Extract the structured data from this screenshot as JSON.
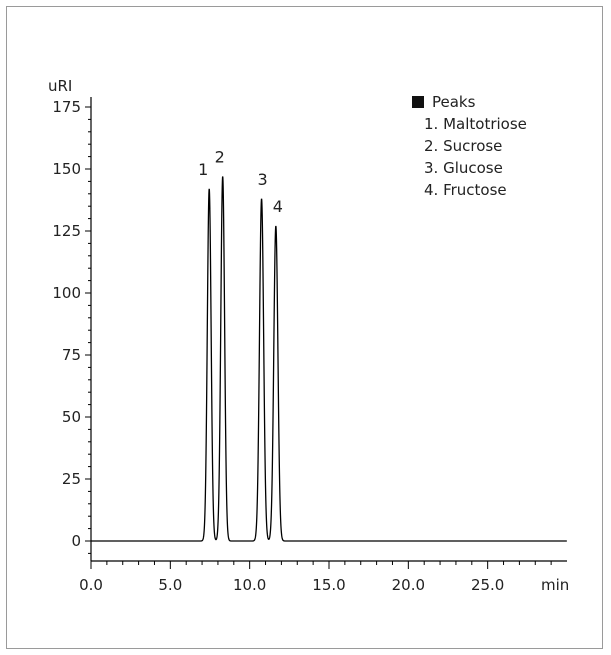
{
  "chart_data": {
    "type": "line",
    "ylabel": "uRI",
    "xlabel": "min",
    "xlim": [
      0,
      30
    ],
    "ylim": [
      -10,
      180
    ],
    "x_ticks": [
      0,
      5,
      10,
      15,
      20,
      25
    ],
    "x_tick_labels": [
      "0.0",
      "5.0",
      "10.0",
      "15.0",
      "20.0",
      "25.0"
    ],
    "y_ticks": [
      0,
      25,
      50,
      75,
      100,
      125,
      150,
      175
    ],
    "y_tick_labels": [
      "0",
      "25",
      "50",
      "75",
      "100",
      "125",
      "150",
      "175"
    ],
    "grid": false,
    "series": [
      {
        "line_color": "#000000",
        "peaks": [
          {
            "label": "1",
            "x": 7.45,
            "y": 142
          },
          {
            "label": "2",
            "x": 8.3,
            "y": 147
          },
          {
            "label": "3",
            "x": 10.75,
            "y": 138
          },
          {
            "label": "4",
            "x": 11.65,
            "y": 127
          }
        ]
      }
    ],
    "legend": {
      "title": "Peaks",
      "items": [
        "1. Maltotriose",
        "2. Sucrose",
        "3. Glucose",
        "4. Fructose"
      ],
      "placement": "top-right"
    }
  }
}
